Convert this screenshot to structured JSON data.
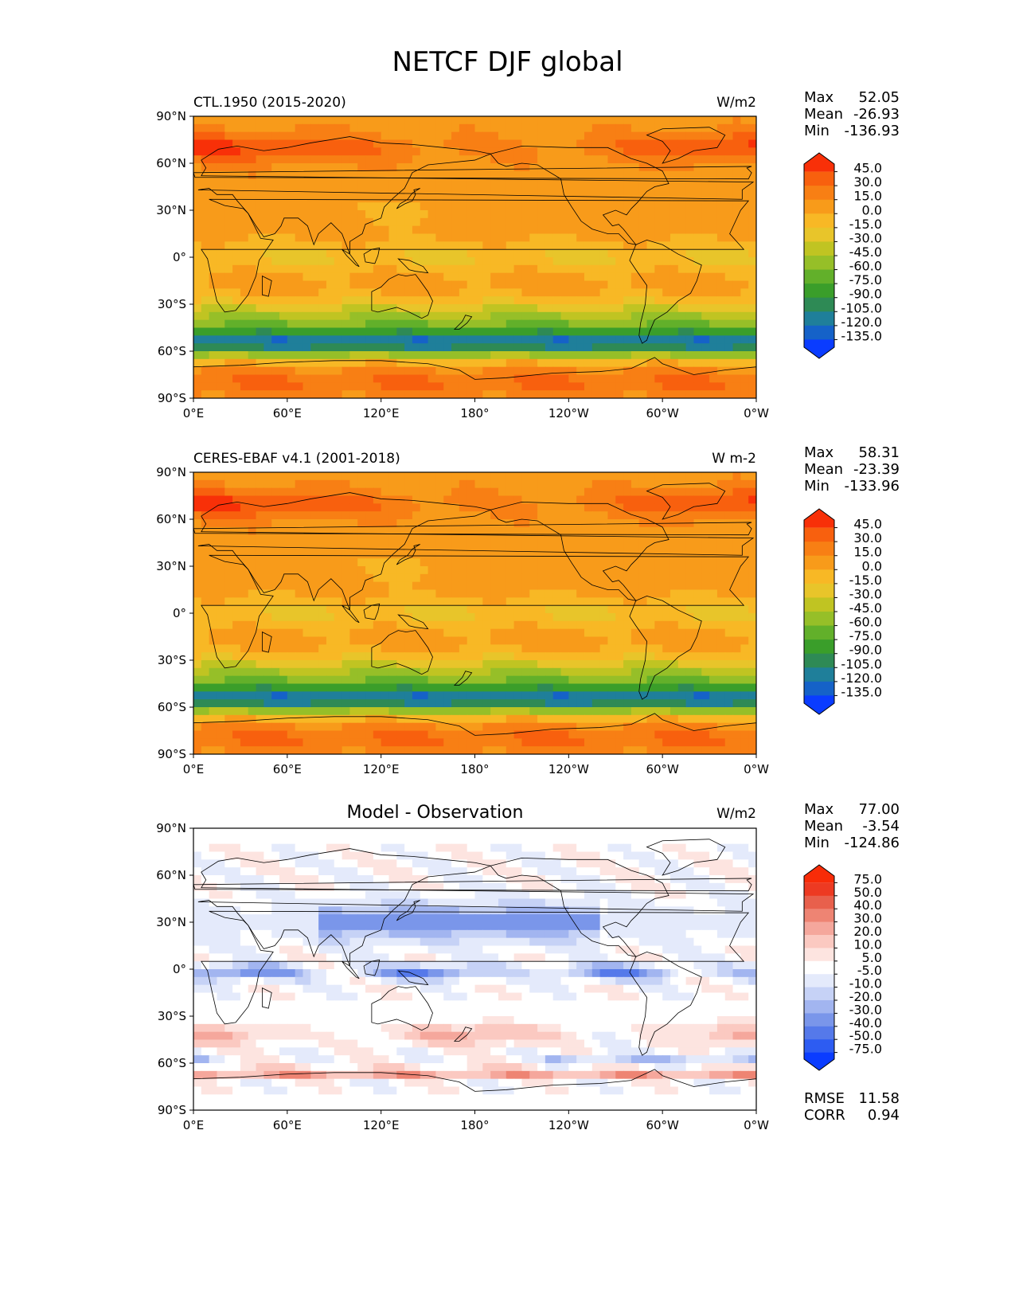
{
  "title": "NETCF DJF global",
  "colors": {
    "abs_levels": [
      "#0a3cff",
      "#1562c8",
      "#1f7f9a",
      "#2e8a55",
      "#3a9e2a",
      "#62b02a",
      "#96bf28",
      "#c0c422",
      "#e8c52a",
      "#f8b825",
      "#f89b1a",
      "#f87f14",
      "#f8600e",
      "#f83008"
    ],
    "diff_levels": [
      "#0a3cff",
      "#2d5cf2",
      "#5579ea",
      "#7a96ea",
      "#a2b5f0",
      "#c6d2f6",
      "#e4eafb",
      "#ffffff",
      "#fde4e0",
      "#fbc9c1",
      "#f5a79c",
      "#ee8473",
      "#e8604c",
      "#ed3a22",
      "#f82c08"
    ],
    "land_line": "#000000"
  },
  "chart_data": [
    {
      "type": "heatmap",
      "id": "model",
      "title_left": "CTL.1950 (2015-2020)",
      "units": "W/m2",
      "x_ticks": [
        "0°E",
        "60°E",
        "120°E",
        "180°",
        "120°W",
        "60°W",
        "0°W"
      ],
      "y_ticks": [
        "90°N",
        "60°N",
        "30°N",
        "0°",
        "30°S",
        "60°S",
        "90°S"
      ],
      "xlim": [
        0,
        360
      ],
      "ylim": [
        -90,
        90
      ],
      "stats": {
        "max_label": "Max",
        "max": "52.05",
        "mean_label": "Mean",
        "mean": "-26.93",
        "min_label": "Min",
        "min": "-136.93"
      },
      "colorbar_labels": [
        "45.0",
        "30.0",
        "15.0",
        "0.0",
        "-15.0",
        "-30.0",
        "-45.0",
        "-60.0",
        "-75.0",
        "-90.0",
        "-105.0",
        "-120.0",
        "-135.0"
      ],
      "colorbar_kind": "abs"
    },
    {
      "type": "heatmap",
      "id": "obs",
      "title_left": "CERES-EBAF v4.1 (2001-2018)",
      "units": "W m-2",
      "x_ticks": [
        "0°E",
        "60°E",
        "120°E",
        "180°",
        "120°W",
        "60°W",
        "0°W"
      ],
      "y_ticks": [
        "90°N",
        "60°N",
        "30°N",
        "0°",
        "30°S",
        "60°S",
        "90°S"
      ],
      "xlim": [
        0,
        360
      ],
      "ylim": [
        -90,
        90
      ],
      "stats": {
        "max_label": "Max",
        "max": "58.31",
        "mean_label": "Mean",
        "mean": "-23.39",
        "min_label": "Min",
        "min": "-133.96"
      },
      "colorbar_labels": [
        "45.0",
        "30.0",
        "15.0",
        "0.0",
        "-15.0",
        "-30.0",
        "-45.0",
        "-60.0",
        "-75.0",
        "-90.0",
        "-105.0",
        "-120.0",
        "-135.0"
      ],
      "colorbar_kind": "abs"
    },
    {
      "type": "heatmap",
      "id": "diff",
      "title_center": "Model - Observation",
      "units": "W/m2",
      "x_ticks": [
        "0°E",
        "60°E",
        "120°E",
        "180°",
        "120°W",
        "60°W",
        "0°W"
      ],
      "y_ticks": [
        "90°N",
        "60°N",
        "30°N",
        "0°",
        "30°S",
        "60°S",
        "90°S"
      ],
      "xlim": [
        0,
        360
      ],
      "ylim": [
        -90,
        90
      ],
      "stats": {
        "max_label": "Max",
        "max": "77.00",
        "mean_label": "Mean",
        "mean": "-3.54",
        "min_label": "Min",
        "min": "-124.86"
      },
      "colorbar_labels": [
        "75.0",
        "50.0",
        "40.0",
        "30.0",
        "20.0",
        "10.0",
        "5.0",
        "-5.0",
        "-10.0",
        "-20.0",
        "-30.0",
        "-40.0",
        "-50.0",
        "-75.0"
      ],
      "colorbar_kind": "diff",
      "extra_stats": {
        "rmse_label": "RMSE",
        "rmse": "11.58",
        "corr_label": "CORR",
        "corr": "0.94"
      }
    }
  ]
}
